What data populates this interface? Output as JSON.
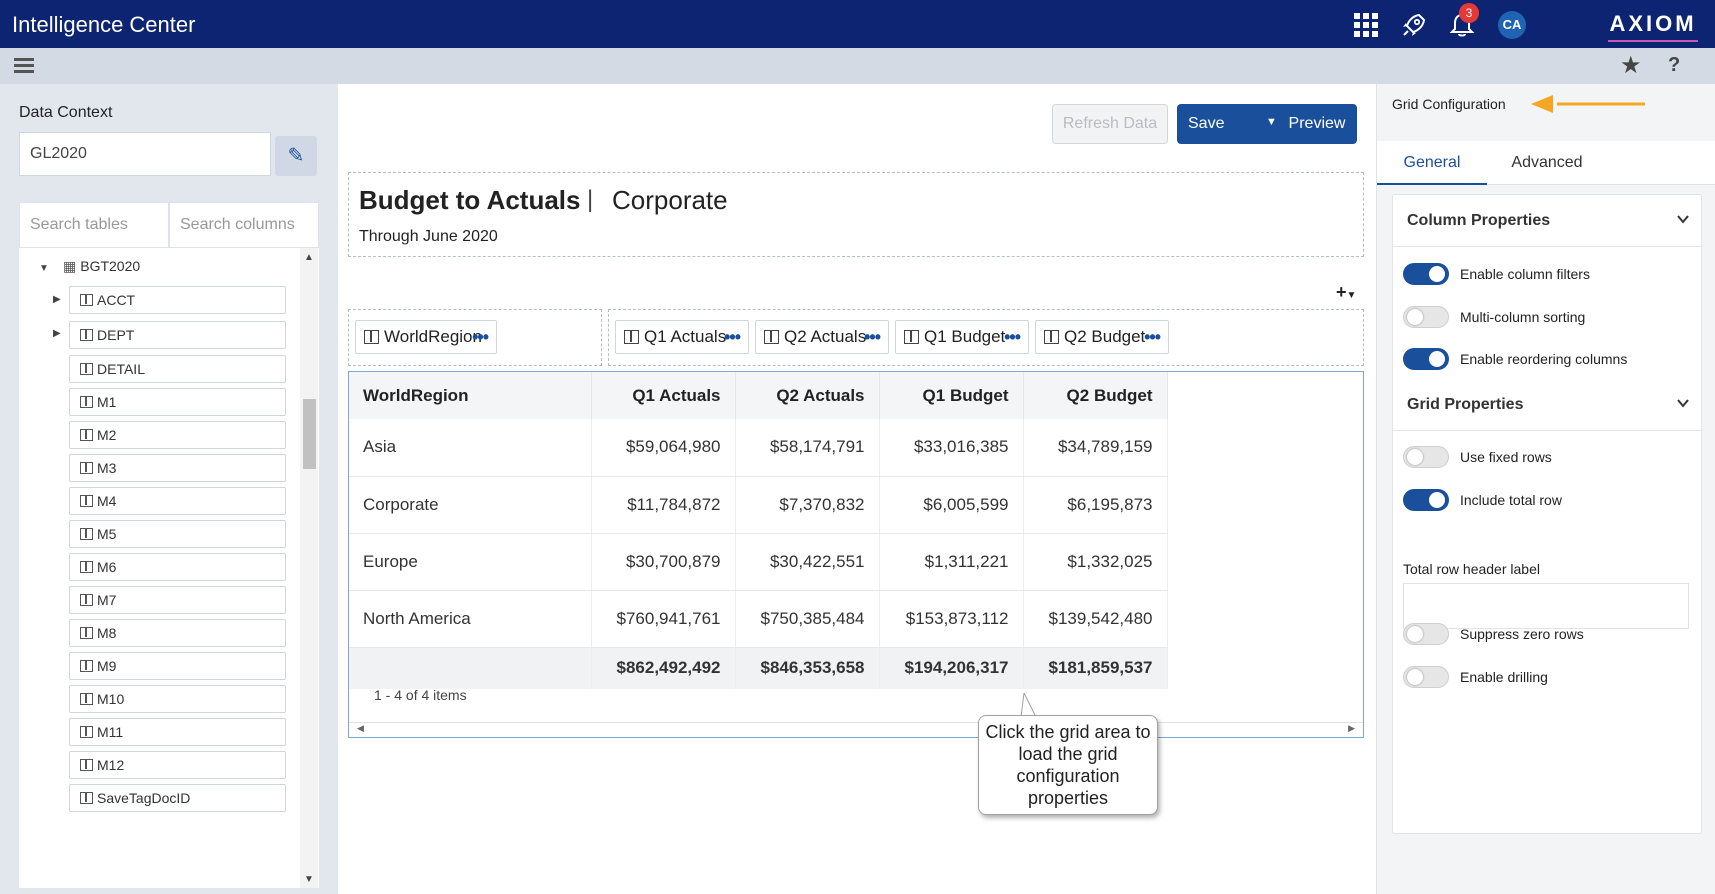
{
  "header": {
    "app_title": "Intelligence Center",
    "notifications_count": "3",
    "user_initials": "CA",
    "brand_logo": "AXIOM",
    "icons": [
      "apps-grid-icon",
      "rocket-icon",
      "bell-icon"
    ]
  },
  "toolbar": {
    "icons": [
      "hamburger-icon",
      "star-icon",
      "help-icon"
    ],
    "help_glyph": "?"
  },
  "left_panel": {
    "data_context_label": "Data Context",
    "data_context_value": "GL2020",
    "search_tables_placeholder": "Search tables",
    "search_columns_placeholder": "Search columns",
    "tree_root": "BGT2020",
    "tree_items": [
      {
        "label": "ACCT",
        "expandable": true
      },
      {
        "label": "DEPT",
        "expandable": true
      },
      {
        "label": "DETAIL",
        "expandable": false
      },
      {
        "label": "M1",
        "expandable": false
      },
      {
        "label": "M2",
        "expandable": false
      },
      {
        "label": "M3",
        "expandable": false
      },
      {
        "label": "M4",
        "expandable": false
      },
      {
        "label": "M5",
        "expandable": false
      },
      {
        "label": "M6",
        "expandable": false
      },
      {
        "label": "M7",
        "expandable": false
      },
      {
        "label": "M8",
        "expandable": false
      },
      {
        "label": "M9",
        "expandable": false
      },
      {
        "label": "M10",
        "expandable": false
      },
      {
        "label": "M11",
        "expandable": false
      },
      {
        "label": "M12",
        "expandable": false
      },
      {
        "label": "SaveTagDocID",
        "expandable": false
      }
    ]
  },
  "main": {
    "buttons": {
      "refresh": "Refresh Data",
      "save": "Save",
      "preview": "Preview"
    },
    "report_title": "Budget to Actuals",
    "title_separator": "|",
    "report_subtitle": "Corporate",
    "report_period": "Through June 2020",
    "add_widget": "+",
    "row_chips": [
      "WorldRegion"
    ],
    "column_chips": [
      "Q1 Actuals",
      "Q2 Actuals",
      "Q1 Budget",
      "Q2 Budget"
    ],
    "grid": {
      "columns": [
        "WorldRegion",
        "Q1 Actuals",
        "Q2 Actuals",
        "Q1 Budget",
        "Q2 Budget"
      ],
      "rows": [
        [
          "Asia",
          "$59,064,980",
          "$58,174,791",
          "$33,016,385",
          "$34,789,159"
        ],
        [
          "Corporate",
          "$11,784,872",
          "$7,370,832",
          "$6,005,599",
          "$6,195,873"
        ],
        [
          "Europe",
          "$30,700,879",
          "$30,422,551",
          "$1,311,221",
          "$1,332,025"
        ],
        [
          "North America",
          "$760,941,761",
          "$750,385,484",
          "$153,873,112",
          "$139,542,480"
        ]
      ],
      "totals": [
        "",
        "$862,492,492",
        "$846,353,658",
        "$194,206,317",
        "$181,859,537"
      ],
      "pager_text": "1 - 4 of 4 items"
    },
    "callout_text": "Click the grid area to load the grid configuration properties"
  },
  "right_panel": {
    "title": "Grid Configuration",
    "tabs": [
      "General",
      "Advanced"
    ],
    "active_tab": "General",
    "column_properties_label": "Column Properties",
    "grid_properties_label": "Grid Properties",
    "column_toggles": [
      {
        "label": "Enable column filters",
        "on": true
      },
      {
        "label": "Multi-column sorting",
        "on": false
      },
      {
        "label": "Enable reordering columns",
        "on": true
      }
    ],
    "grid_toggles": [
      {
        "label": "Use fixed rows",
        "on": false
      },
      {
        "label": "Include total row",
        "on": true
      }
    ],
    "total_row_header_label": "Total row header label",
    "total_row_header_value": "",
    "extra_toggles": [
      {
        "label": "Suppress zero rows",
        "on": false
      },
      {
        "label": "Enable drilling",
        "on": false
      }
    ]
  },
  "colors": {
    "header_bg": "#0d2472",
    "accent": "#1a4f9c",
    "notification": "#e53935",
    "callout_arrow": "#f5a623"
  }
}
